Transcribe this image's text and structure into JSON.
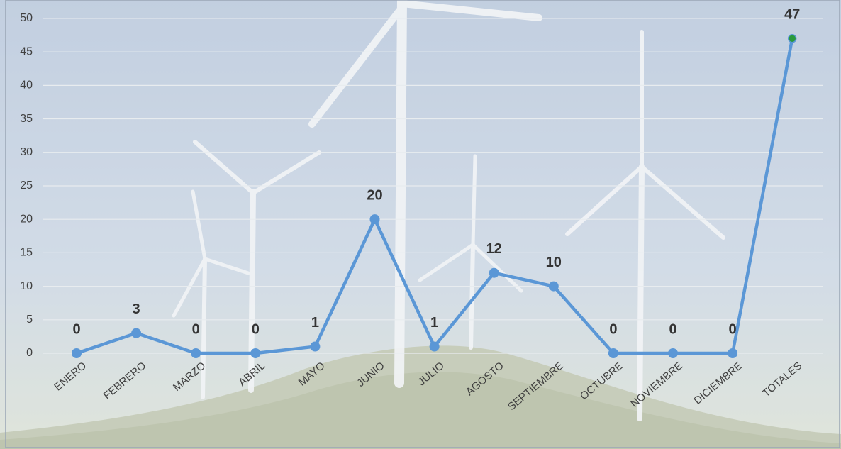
{
  "chart_data": {
    "type": "line",
    "categories": [
      "ENERO",
      "FEBRERO",
      "MARZO",
      "ABRIL",
      "MAYO",
      "JUNIO",
      "JULIO",
      "AGOSTO",
      "SEPTIEMBRE",
      "OCTUBRE",
      "NOVIEMBRE",
      "DICIEMBRE",
      "TOTALES"
    ],
    "series": [
      {
        "color": "#5b97d6",
        "values": [
          0,
          3,
          0,
          0,
          1,
          20,
          1,
          12,
          10,
          0,
          0,
          0,
          47
        ]
      }
    ],
    "last_point_color": "#2a9a3c",
    "ylim": [
      0,
      52.75
    ],
    "yticks": [
      0,
      5,
      10,
      15,
      20,
      25,
      30,
      35,
      40,
      45,
      50
    ],
    "grid": true
  }
}
